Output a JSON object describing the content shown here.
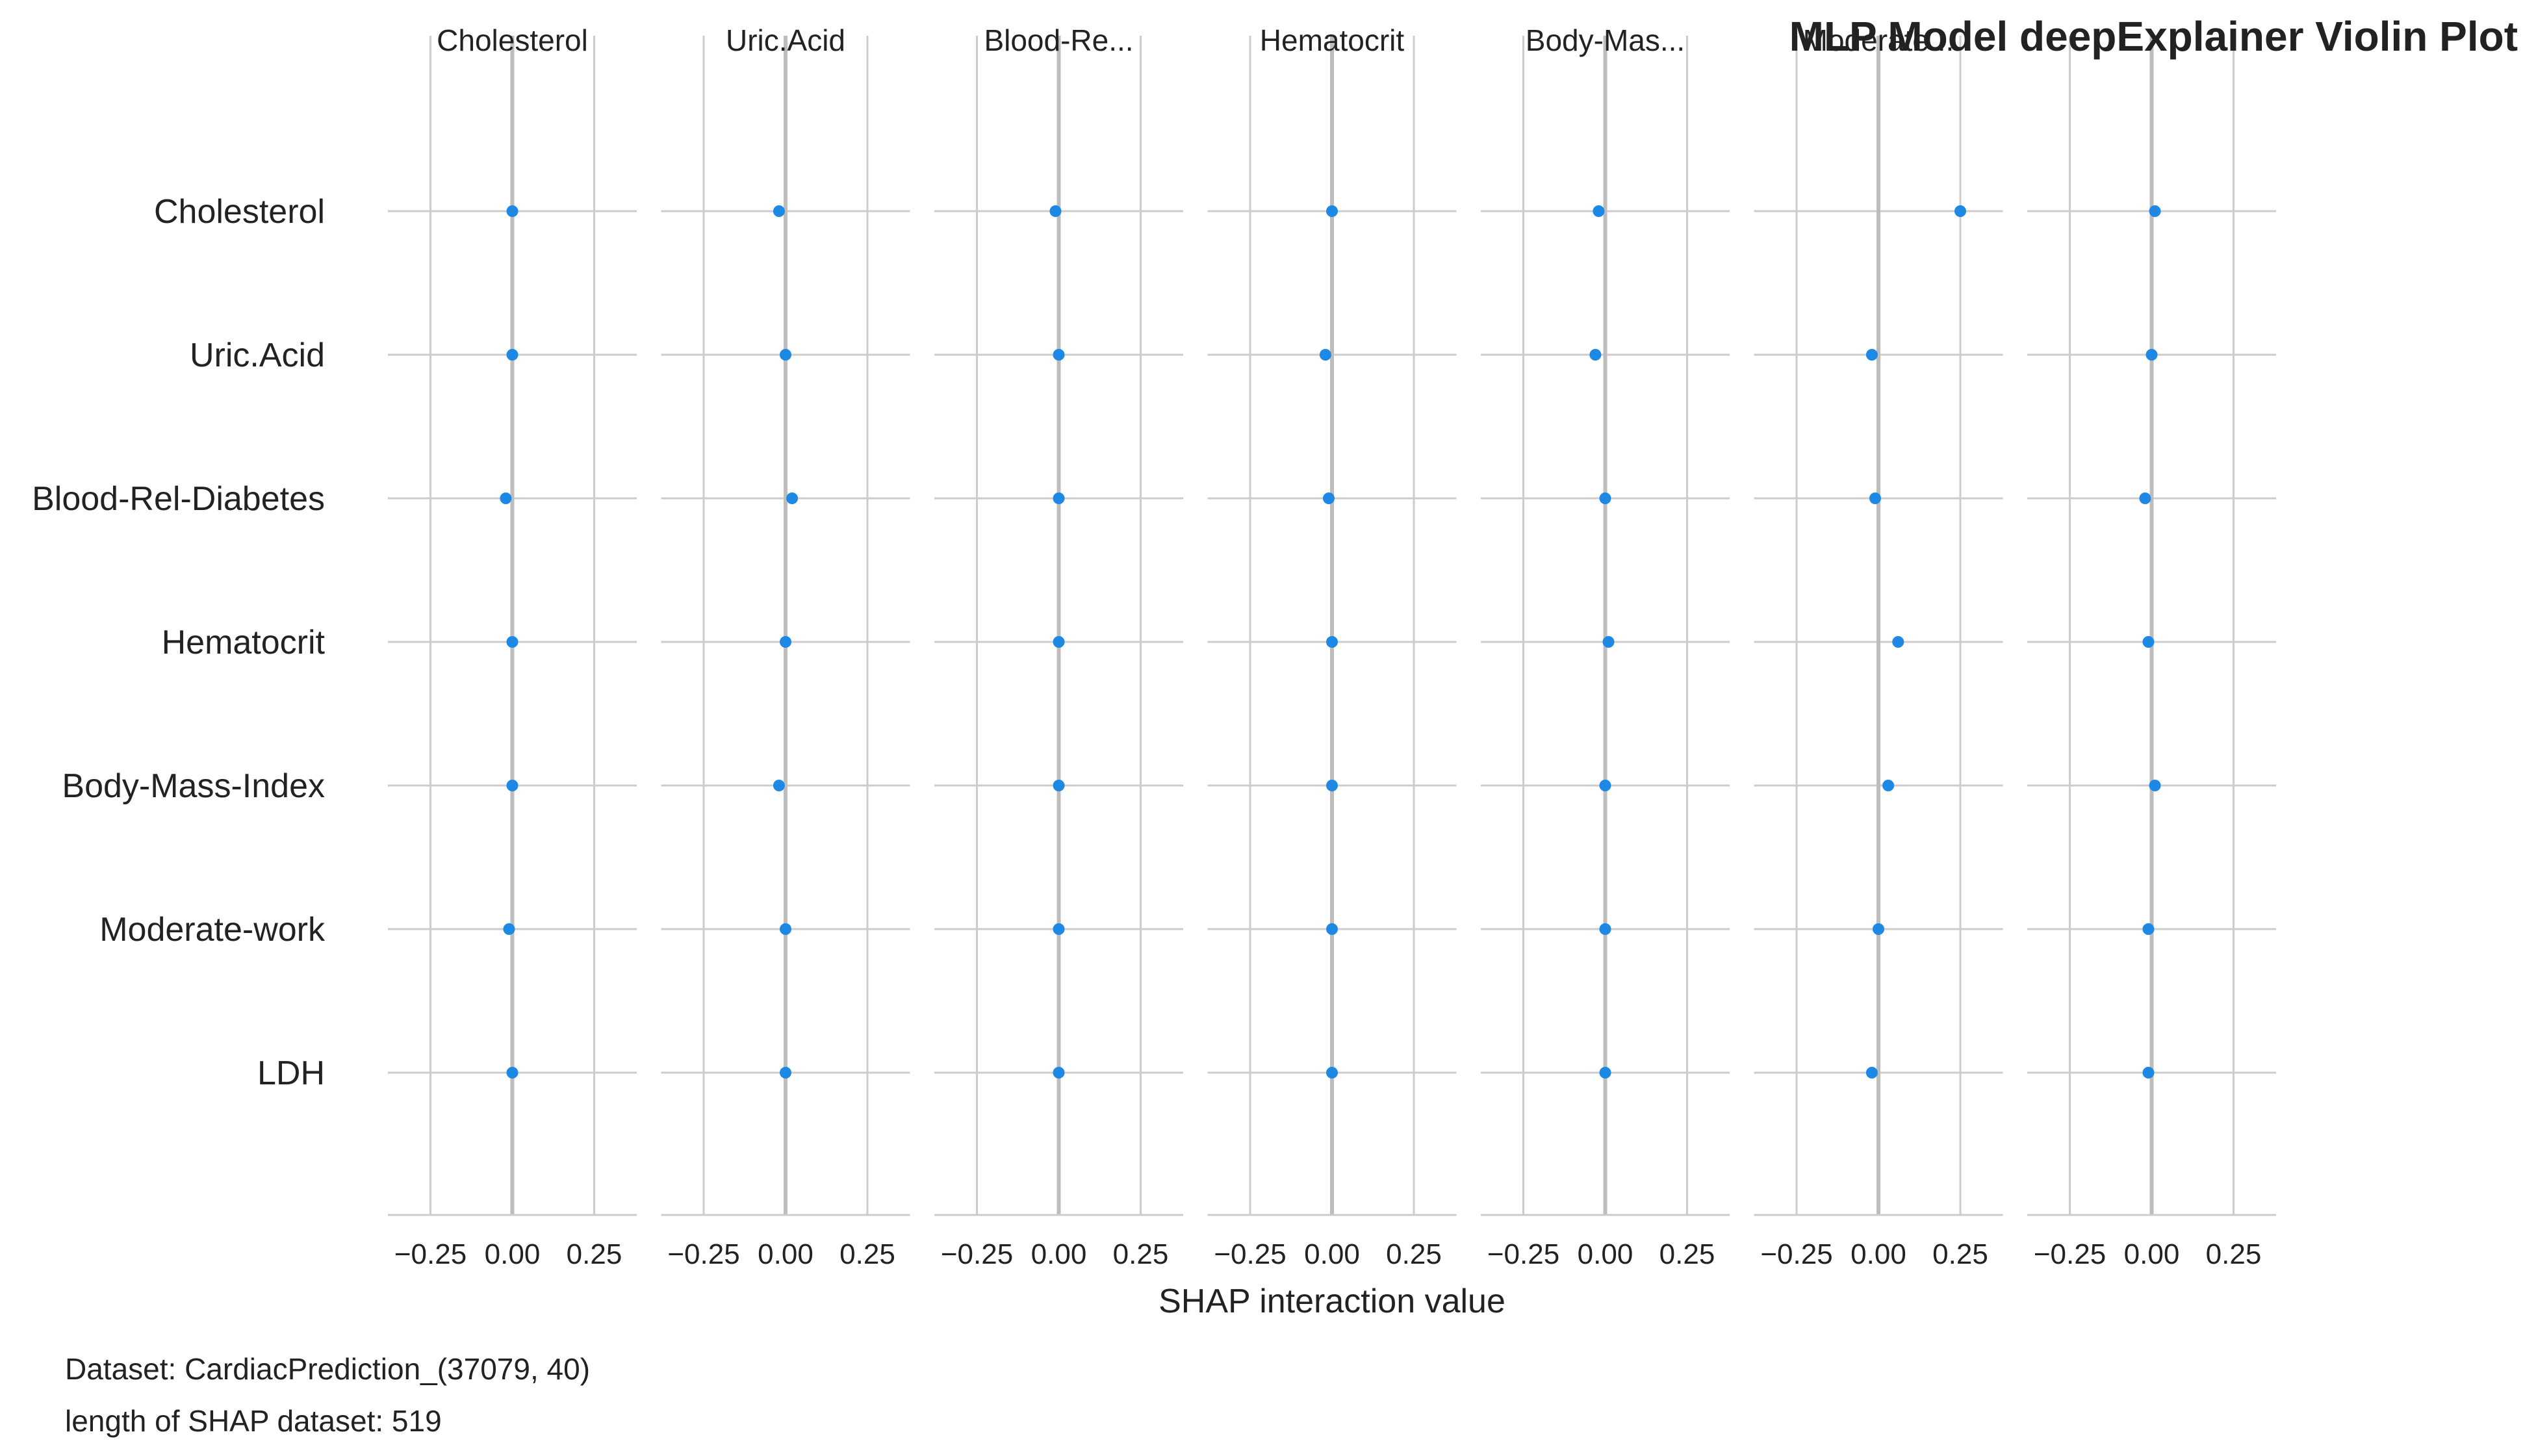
{
  "chart_data": {
    "type": "scatter",
    "title": "MLP Model deepExplainer Violin Plot",
    "xlabel": "SHAP interaction value",
    "xlim": [
      -0.38,
      0.38
    ],
    "xticks": [
      -0.25,
      0.0,
      0.25
    ],
    "xtick_labels": [
      "−0.25",
      "0.00",
      "0.25"
    ],
    "grid": true,
    "columns": [
      "Cholesterol",
      "Uric.Acid",
      "Blood-Re...",
      "Hematocrit",
      "Body-Mas...",
      "Moderate...",
      ""
    ],
    "rows": [
      "Cholesterol",
      "Uric.Acid",
      "Blood-Rel-Diabetes",
      "Hematocrit",
      "Body-Mass-Index",
      "Moderate-work",
      "LDH"
    ],
    "values": [
      [
        0.0,
        -0.02,
        -0.01,
        0.0,
        -0.02,
        0.25,
        0.01
      ],
      [
        0.0,
        0.0,
        0.0,
        -0.02,
        -0.03,
        -0.02,
        0.0
      ],
      [
        -0.02,
        0.02,
        0.0,
        -0.01,
        0.0,
        -0.01,
        -0.02
      ],
      [
        0.0,
        0.0,
        0.0,
        0.0,
        0.01,
        0.06,
        -0.01
      ],
      [
        0.0,
        -0.02,
        0.0,
        0.0,
        0.0,
        0.03,
        0.01
      ],
      [
        -0.01,
        0.0,
        0.0,
        0.0,
        0.0,
        0.0,
        -0.01
      ],
      [
        0.0,
        0.0,
        0.0,
        0.0,
        0.0,
        -0.02,
        -0.01
      ]
    ],
    "point_color": "#1e88e5"
  },
  "footer": {
    "dataset": "Dataset:  CardiacPrediction_(37079, 40)",
    "length": "length of SHAP dataset: 519"
  }
}
